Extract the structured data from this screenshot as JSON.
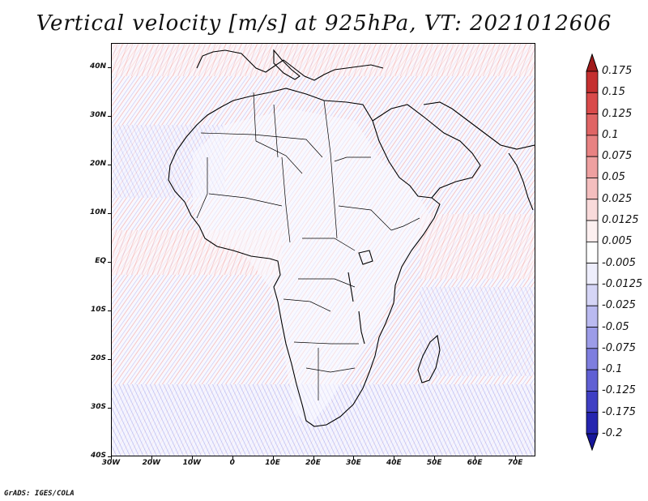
{
  "title": "Vertical velocity [m/s] at 925hPa, VT: 2021012606",
  "credit": "GrADS: IGES/COLA",
  "map": {
    "lat_range": [
      -40,
      45
    ],
    "lon_range": [
      -30,
      75
    ],
    "lat_labels": [
      "40N",
      "30N",
      "20N",
      "10N",
      "EQ",
      "10S",
      "20S",
      "30S",
      "40S"
    ],
    "lon_labels": [
      "30W",
      "20W",
      "10W",
      "0",
      "10E",
      "20E",
      "30E",
      "40E",
      "50E",
      "60E",
      "70E"
    ]
  },
  "colorbar": {
    "labels": [
      "0.175",
      "0.15",
      "0.125",
      "0.1",
      "0.075",
      "0.05",
      "0.025",
      "0.0125",
      "0.005",
      "-0.005",
      "-0.0125",
      "-0.025",
      "-0.05",
      "-0.075",
      "-0.1",
      "-0.125",
      "-0.175",
      "-0.2"
    ],
    "colors": [
      "#a11b1b",
      "#c53030",
      "#d94a4a",
      "#e06565",
      "#e88282",
      "#eea0a0",
      "#f4bebe",
      "#f9dada",
      "#fdf0f0",
      "#ffffff",
      "#eeeefc",
      "#d5d5f6",
      "#babaf0",
      "#9c9ce8",
      "#7e7edf",
      "#6060d4",
      "#3f3fc4",
      "#2525b0",
      "#16169a"
    ]
  }
}
